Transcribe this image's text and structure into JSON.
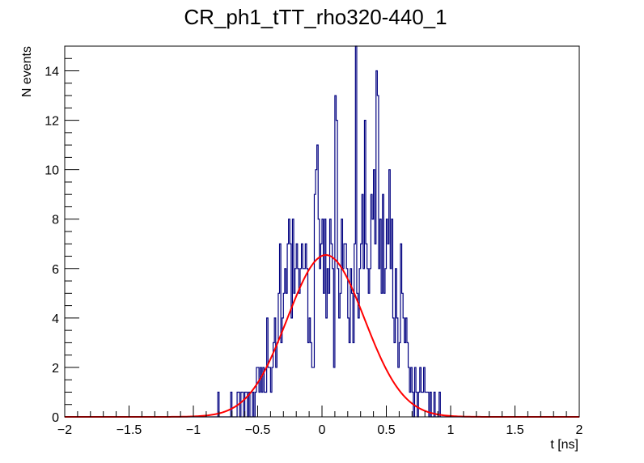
{
  "chart_data": {
    "type": "histogram",
    "title": "CR_ph1_tTT_rho320-440_1",
    "xlabel": "t [ns]",
    "ylabel": "N events",
    "xlim": [
      -2,
      2
    ],
    "ylim": [
      0,
      15
    ],
    "x_ticks": [
      -2,
      -1.5,
      -1,
      -0.5,
      0,
      0.5,
      1,
      1.5,
      2
    ],
    "x_tick_labels": [
      "−2",
      "−1.5",
      "−1",
      "−0.5",
      "0",
      "0.5",
      "1",
      "1.5",
      "2"
    ],
    "y_ticks": [
      0,
      2,
      4,
      6,
      8,
      10,
      12,
      14
    ],
    "y_tick_labels": [
      "0",
      "2",
      "4",
      "6",
      "8",
      "10",
      "12",
      "14"
    ],
    "grid": false,
    "legend": "none",
    "colors": {
      "histogram": "#000080",
      "fit": "#ff0000",
      "frame": "#000000"
    },
    "series": [
      {
        "kind": "histogram",
        "bin_edges_range": [
          -0.84,
          0.92
        ],
        "bin_width": 0.01,
        "counts": [
          0,
          0,
          0,
          1,
          0,
          0,
          0,
          0,
          0,
          0,
          0,
          0,
          0,
          1,
          0,
          0,
          0,
          0,
          1,
          1,
          0,
          1,
          1,
          0,
          1,
          1,
          0,
          1,
          0,
          0,
          1,
          0,
          1,
          2,
          2,
          1,
          2,
          1,
          2,
          1,
          1,
          4,
          2,
          2,
          1,
          2,
          3,
          4,
          2,
          3,
          5,
          7,
          3,
          4,
          5,
          6,
          5,
          7,
          8,
          7,
          4,
          8,
          5,
          6,
          7,
          6,
          5,
          6,
          7,
          6,
          6,
          7,
          6,
          3,
          4,
          3,
          2,
          2,
          9,
          10,
          11,
          8,
          6,
          7,
          8,
          5,
          8,
          4,
          6,
          5,
          8,
          7,
          6,
          2,
          13,
          12,
          6,
          4,
          5,
          8,
          6,
          7,
          7,
          6,
          4,
          3,
          6,
          5,
          3,
          7,
          15,
          5,
          4,
          6,
          7,
          9,
          6,
          12,
          7,
          6,
          5,
          6,
          9,
          8,
          10,
          7,
          14,
          13,
          6,
          8,
          5,
          9,
          5,
          6,
          8,
          7,
          10,
          6,
          8,
          4,
          3,
          6,
          4,
          2,
          3,
          7,
          5,
          4,
          3,
          4,
          3,
          2,
          1,
          2,
          1,
          0,
          2,
          1,
          0,
          1,
          2,
          1,
          1,
          2,
          1,
          1,
          1,
          0,
          1,
          0,
          0,
          1,
          0,
          0,
          0,
          1
        ]
      },
      {
        "kind": "gaussian-fit",
        "amplitude": 6.55,
        "mean": 0.03,
        "sigma": 0.3
      }
    ]
  }
}
